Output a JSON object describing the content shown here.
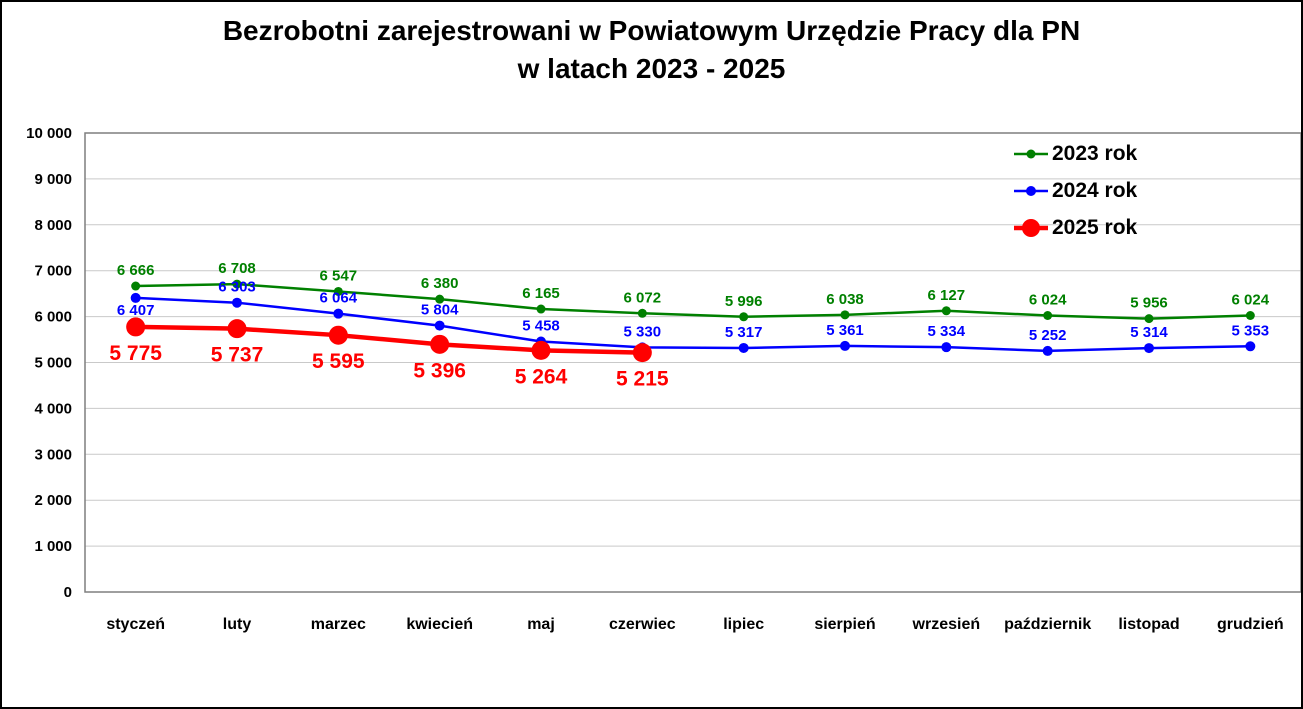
{
  "title": {
    "line1": "Bezrobotni zarejestrowani w Powiatowym Urzędzie Pracy dla PN",
    "line2": "w latach 2023 - 2025"
  },
  "chart_data": {
    "type": "line",
    "title": "Bezrobotni zarejestrowani w Powiatowym Urzędzie Pracy dla PN w latach 2023 - 2025",
    "categories": [
      "styczeń",
      "luty",
      "marzec",
      "kwiecień",
      "maj",
      "czerwiec",
      "lipiec",
      "sierpień",
      "wrzesień",
      "październik",
      "listopad",
      "grudzień"
    ],
    "series": [
      {
        "name": "2023 rok",
        "color": "#008000",
        "values": [
          6666,
          6708,
          6547,
          6380,
          6165,
          6072,
          5996,
          6038,
          6127,
          6024,
          5956,
          6024
        ],
        "line_width": 2.5,
        "marker_radius": 4.5,
        "label_font_size": 15,
        "label_position": "above",
        "label_dy": -11,
        "label_overrides": []
      },
      {
        "name": "2024 rok",
        "color": "#0000FF",
        "values": [
          6407,
          6303,
          6064,
          5804,
          5458,
          5330,
          5317,
          5361,
          5334,
          5252,
          5314,
          5353
        ],
        "line_width": 2.5,
        "marker_radius": 5,
        "label_font_size": 15,
        "label_position": "above",
        "label_dy": -11,
        "label_overrides": [
          {
            "index": 0,
            "position": "below",
            "dy": 17
          }
        ]
      },
      {
        "name": "2025 rok",
        "color": "#FF0000",
        "values": [
          5775,
          5737,
          5595,
          5396,
          5264,
          5215,
          null,
          null,
          null,
          null,
          null,
          null
        ],
        "line_width": 4.5,
        "marker_radius": 9.5,
        "label_font_size": 21,
        "label_position": "below",
        "label_dy": 33,
        "label_overrides": []
      }
    ],
    "ylim": [
      0,
      10000
    ],
    "ytick_step": 1000,
    "ytick_labels": [
      "0",
      "1 000",
      "2 000",
      "3 000",
      "4 000",
      "5 000",
      "6 000",
      "7 000",
      "8 000",
      "9 000",
      "10 000"
    ],
    "grid": "horizontal",
    "gridline_color": "#C9C9C9",
    "plot_border_color": "#7F7F7F",
    "legend_position": "top-right",
    "number_format": "space-thousands",
    "xlabel": "",
    "ylabel": ""
  }
}
